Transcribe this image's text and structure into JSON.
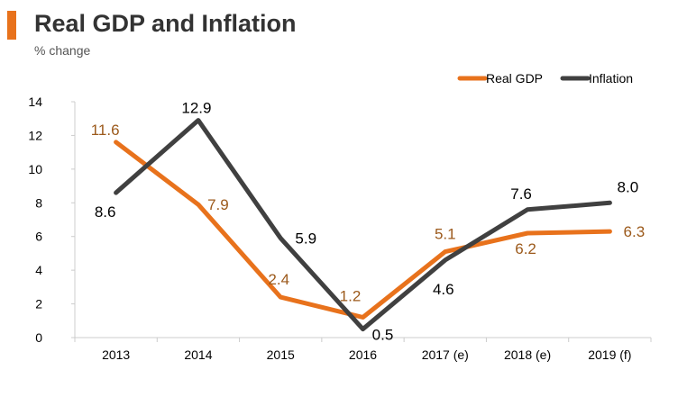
{
  "header": {
    "title": "Real GDP and Inflation",
    "subtitle": "% change",
    "accent_color": "#e8721c"
  },
  "chart_data": {
    "type": "line",
    "title": "Real GDP and Inflation",
    "ylabel": "% change",
    "xlabel": "",
    "categories": [
      "2013",
      "2014",
      "2015",
      "2016",
      "2017 (e)",
      "2018 (e)",
      "2019 (f)"
    ],
    "ylim": [
      0,
      14
    ],
    "yticks": [
      0,
      2,
      4,
      6,
      8,
      10,
      12,
      14
    ],
    "grid": false,
    "legend_position": "top-right",
    "series": [
      {
        "name": "Real GDP",
        "color": "#e8721c",
        "label_color": "#9c5a1c",
        "values": [
          11.6,
          7.9,
          2.4,
          1.2,
          5.1,
          6.2,
          6.3
        ],
        "labels": [
          "11.6",
          "7.9",
          "2.4",
          "1.2",
          "5.1",
          "6.2",
          "6.3"
        ]
      },
      {
        "name": "Inflation",
        "color": "#404040",
        "label_color": "#000000",
        "values": [
          8.6,
          12.9,
          5.9,
          0.5,
          4.6,
          7.6,
          8.0
        ],
        "labels": [
          "8.6",
          "12.9",
          "5.9",
          "0.5",
          "4.6",
          "7.6",
          "8.0"
        ]
      }
    ]
  }
}
